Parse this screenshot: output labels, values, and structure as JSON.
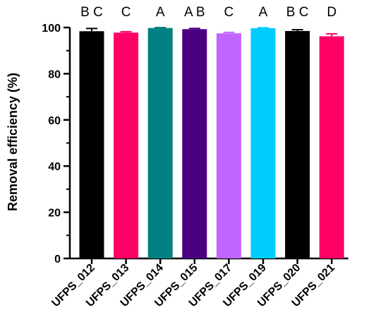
{
  "chart_data": {
    "type": "bar",
    "categories": [
      "UFPS_012",
      "UFPS_013",
      "UFPS_014",
      "UFPS_015",
      "UFPS_017",
      "UFPS_019",
      "UFPS_020",
      "UFPS_021"
    ],
    "values": [
      98.4,
      97.8,
      99.8,
      99.3,
      97.5,
      99.7,
      98.5,
      96.2
    ],
    "errors": [
      1.2,
      0.4,
      0.2,
      0.3,
      0.4,
      0.2,
      0.6,
      1.1
    ],
    "significance_letters": [
      "B C",
      "C",
      "A",
      "A B",
      "C",
      "A",
      "B C",
      "D"
    ],
    "colors": [
      "#000000",
      "#ff0066",
      "#008080",
      "#4b0082",
      "#bf66ff",
      "#00ccff",
      "#000000",
      "#ff0066"
    ],
    "ylabel": "Removal efficiency (%)",
    "xlabel": "",
    "ylim": [
      0,
      100
    ],
    "yticks": [
      0,
      20,
      40,
      60,
      80,
      100
    ],
    "grid": false,
    "legend": "none"
  }
}
